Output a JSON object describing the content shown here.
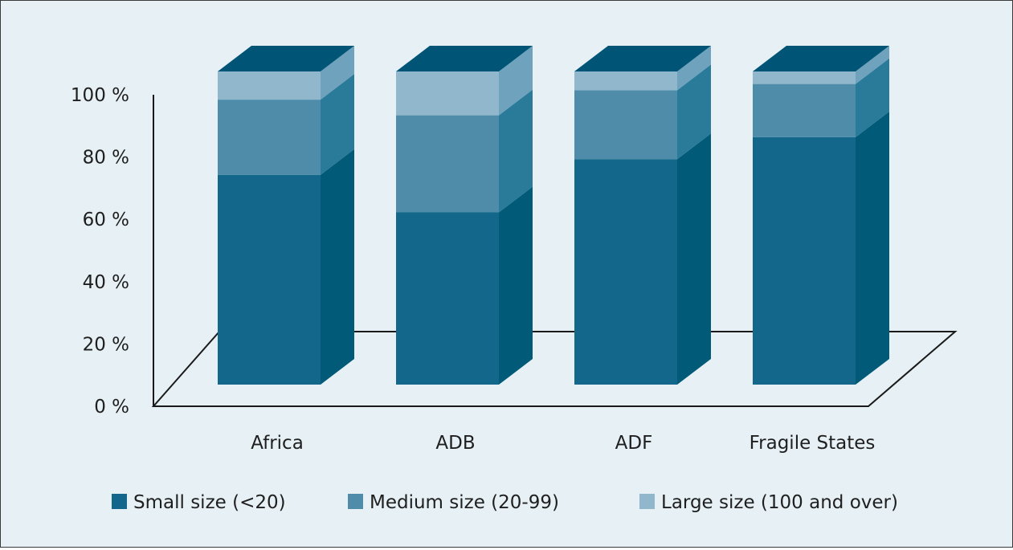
{
  "chart_data": {
    "type": "bar",
    "stacked": true,
    "three_d": true,
    "categories": [
      "Africa",
      "ADB",
      "ADF",
      "Fragile States"
    ],
    "series": [
      {
        "name": "Small size (<20)",
        "values": [
          67,
          55,
          72,
          79
        ]
      },
      {
        "name": "Medium size (20-99)",
        "values": [
          24,
          31,
          22,
          17
        ]
      },
      {
        "name": "Large size (100 and over)",
        "values": [
          9,
          14,
          6,
          4
        ]
      }
    ],
    "y_ticks": [
      "0 %",
      "20 %",
      "40 %",
      "60 %",
      "80 %",
      "100 %"
    ],
    "ylim": [
      0,
      100
    ],
    "grid": false,
    "legend_position": "bottom",
    "colors": {
      "small_front": "#12678a",
      "small_side": "#005a78",
      "medium_front": "#4f8ca9",
      "medium_side": "#2a7a99",
      "large_front": "#91b7cd",
      "large_side": "#6fa2bd",
      "top": "#005577",
      "background": "#e6f0f5"
    }
  }
}
